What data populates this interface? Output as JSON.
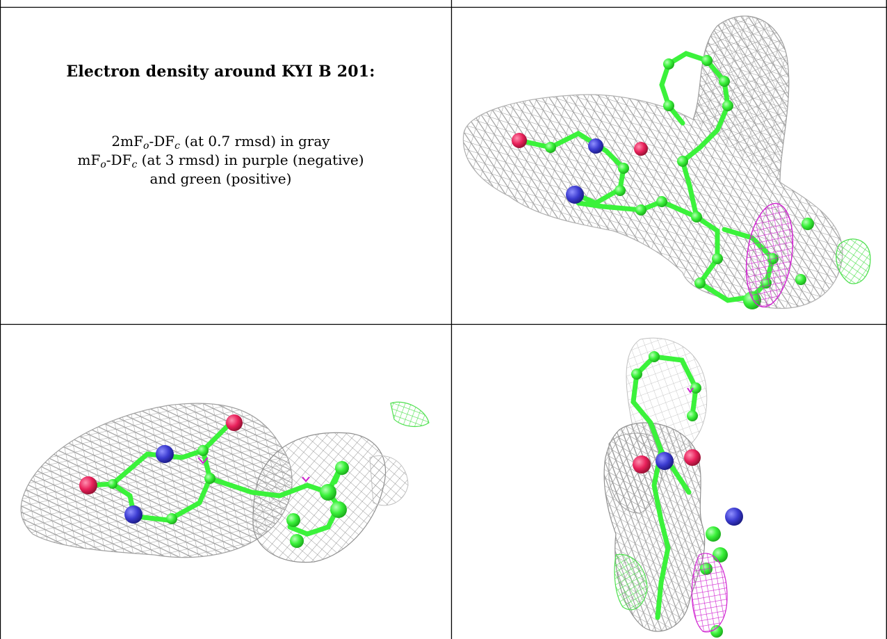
{
  "caption": {
    "title": "Electron density around KYI B 201:",
    "map1_prefix": "2mF",
    "map1_sub1": "o",
    "map1_mid": "-DF",
    "map1_sub2": "c",
    "map1_suffix": " (at 0.7 rmsd) in gray",
    "map2_prefix": "mF",
    "map2_sub1": "o",
    "map2_mid": "-DF",
    "map2_sub2": "c",
    "map2_suffix": " (at 3 rmsd) in purple (negative)",
    "map2_line2": "and green (positive)"
  },
  "colors": {
    "gray_density": "#9a9a9a",
    "negative_density": "#d020d0",
    "positive_density": "#4fe04f",
    "carbon": "#3bf23b",
    "nitrogen": "#3b3bd0",
    "oxygen": "#e8205a"
  }
}
